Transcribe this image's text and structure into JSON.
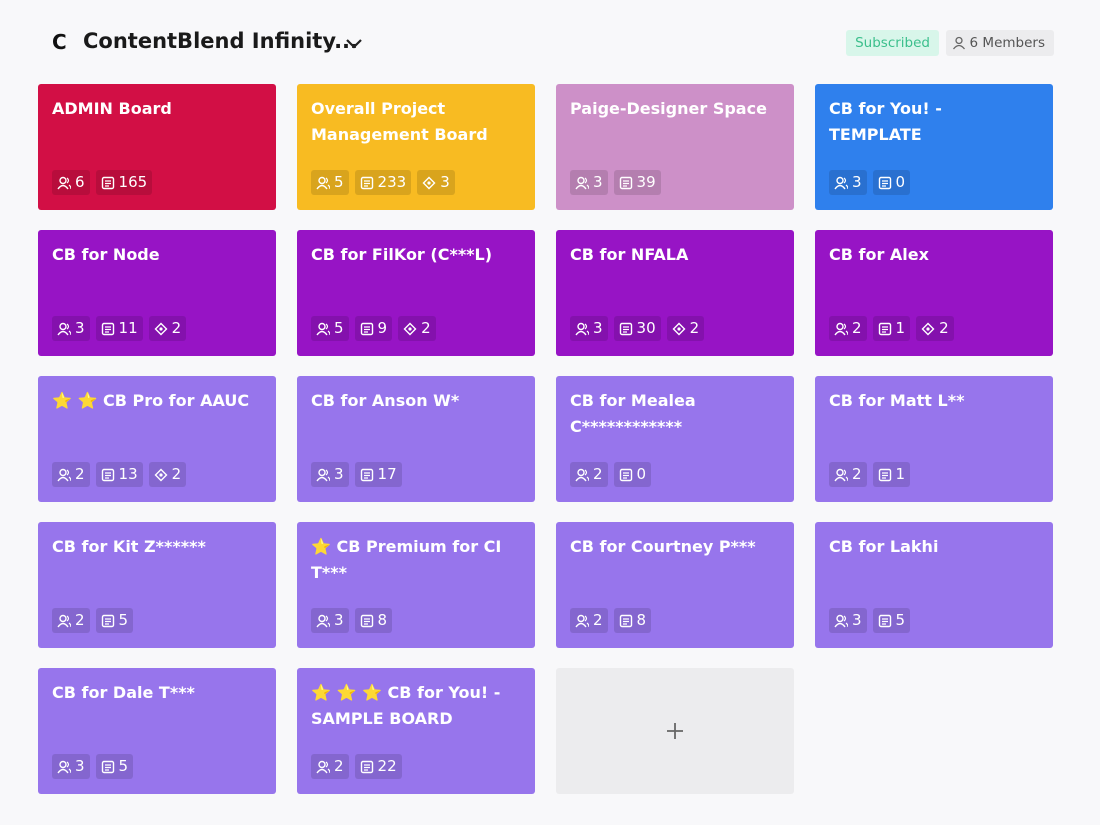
{
  "header": {
    "title": "ContentBlend Infinity...",
    "status": "Subscribed",
    "members": "6 Members"
  },
  "boards": [
    {
      "title": "ADMIN Board",
      "color": "#d20f45",
      "members": 6,
      "cards": 165
    },
    {
      "title": "Overall Project Management Board",
      "color": "#f8bb22",
      "members": 5,
      "cards": 233,
      "views": 3
    },
    {
      "title": "Paige-Designer Space",
      "color": "#cd90c8",
      "members": 3,
      "cards": 39
    },
    {
      "title": "CB for You! - TEMPLATE",
      "color": "#2f80ed",
      "members": 3,
      "cards": 0
    },
    {
      "title": "CB for Node",
      "color": "#9714c5",
      "members": 3,
      "cards": 11,
      "views": 2
    },
    {
      "title": "CB for FilKor (C***L)",
      "color": "#9714c5",
      "members": 5,
      "cards": 9,
      "views": 2
    },
    {
      "title": "CB for NFALA",
      "color": "#9714c5",
      "members": 3,
      "cards": 30,
      "views": 2
    },
    {
      "title": "CB for Alex",
      "color": "#9714c5",
      "members": 2,
      "cards": 1,
      "views": 2
    },
    {
      "title": "⭐ ⭐ CB Pro for AAUC",
      "color": "#9775ec",
      "members": 2,
      "cards": 13,
      "views": 2
    },
    {
      "title": "CB for Anson W*",
      "color": "#9775ec",
      "members": 3,
      "cards": 17
    },
    {
      "title": "CB for Mealea C************",
      "color": "#9775ec",
      "members": 2,
      "cards": 0
    },
    {
      "title": "CB for Matt L**",
      "color": "#9775ec",
      "members": 2,
      "cards": 1
    },
    {
      "title": "CB for Kit Z******",
      "color": "#9775ec",
      "members": 2,
      "cards": 5
    },
    {
      "title": "⭐ CB Premium for CI T***",
      "color": "#9775ec",
      "members": 3,
      "cards": 8
    },
    {
      "title": "CB for Courtney P***",
      "color": "#9775ec",
      "members": 2,
      "cards": 8
    },
    {
      "title": "CB for Lakhi",
      "color": "#9775ec",
      "members": 3,
      "cards": 5
    },
    {
      "title": "CB for Dale T***",
      "color": "#9775ec",
      "members": 3,
      "cards": 5
    },
    {
      "title": "⭐ ⭐ ⭐ CB for You! - SAMPLE BOARD",
      "color": "#9775ec",
      "members": 2,
      "cards": 22
    }
  ]
}
